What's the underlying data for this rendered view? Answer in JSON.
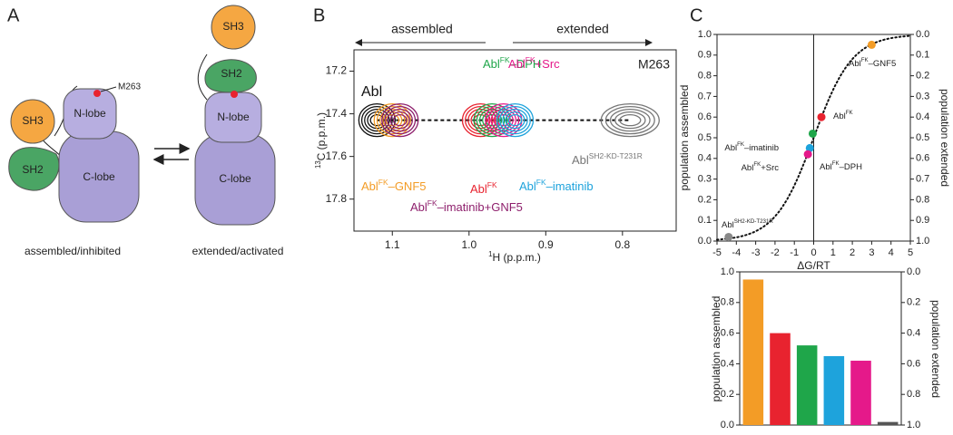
{
  "diagram": {
    "label": "A",
    "left": {
      "sh3": "SH3",
      "sh2": "SH2",
      "nlobe": "N-lobe",
      "clobe": "C-lobe",
      "site": "M263",
      "caption": "assembled/inhibited"
    },
    "right": {
      "sh3": "SH3",
      "sh2": "SH2",
      "nlobe": "N-lobe",
      "clobe": "C-lobe",
      "caption": "extended/activated"
    }
  },
  "chart_data": [
    {
      "type": "contour",
      "panel": "B",
      "annotations": {
        "left_arrow": "assembled",
        "right_arrow": "extended",
        "residue": "M263"
      },
      "xlabel": [
        "1",
        "H (p.p.m.)"
      ],
      "ylabel": [
        "13",
        "C (p.p.m.)"
      ],
      "xlim": [
        1.15,
        0.73
      ],
      "ylim": [
        17.95,
        17.1
      ],
      "xticks": [
        1.1,
        {
          "value": 1,
          "label": "1.0"
        },
        0.9,
        0.8
      ],
      "yticks": [
        17.2,
        17.4,
        17.6,
        17.8
      ],
      "series": [
        {
          "name": [
            "Abl"
          ],
          "color": "#111111",
          "x": [
            1.12
          ],
          "y": [
            17.43
          ]
        },
        {
          "name": [
            "Abl",
            "FK",
            "–GNF5"
          ],
          "color": "#f39c26",
          "x": [
            1.1
          ],
          "y": [
            17.43
          ]
        },
        {
          "name": [
            "Abl",
            "FK",
            "–imatinib+GNF5"
          ],
          "color": "#8e1f6c",
          "x": [
            1.09
          ],
          "y": [
            17.43
          ]
        },
        {
          "name": [
            "Abl",
            "FK"
          ],
          "color": "#e8232f",
          "x": [
            0.985
          ],
          "y": [
            17.43
          ]
        },
        {
          "name": [
            "Abl",
            "FK",
            "–DPH"
          ],
          "color": "#1fa64a",
          "x": [
            0.97
          ],
          "y": [
            17.43
          ]
        },
        {
          "name": [
            "Abl",
            "FK",
            "+Src"
          ],
          "color": "#e5198a",
          "x": [
            0.955
          ],
          "y": [
            17.43
          ]
        },
        {
          "name": [
            "Abl",
            "FK",
            "–imatinib"
          ],
          "color": "#1ea3dc",
          "x": [
            0.94
          ],
          "y": [
            17.43
          ]
        },
        {
          "name": [
            "Abl",
            "SH2-KD-T231R"
          ],
          "color": "#777777",
          "x": [
            0.79
          ],
          "y": [
            17.43
          ]
        }
      ]
    },
    {
      "type": "scatter",
      "panel": "C",
      "xlabel": "ΔG/RT",
      "ylabel": "population assembled",
      "y2label": "population extended",
      "xlim": [
        -5,
        5
      ],
      "ylim": [
        0,
        1
      ],
      "y2lim": [
        1,
        0
      ],
      "xticks": [
        -5,
        -4,
        -3,
        -2,
        -1,
        0,
        1,
        2,
        3,
        4,
        5
      ],
      "yticks": [
        {
          "value": 0,
          "label": "0.0"
        },
        0.1,
        0.2,
        0.3,
        0.4,
        0.5,
        0.6,
        0.7,
        0.8,
        0.9,
        {
          "value": 1,
          "label": "1.0"
        }
      ],
      "y2ticks": [
        {
          "value": 0,
          "label": "0.0"
        },
        0.1,
        0.2,
        0.3,
        0.4,
        0.5,
        0.6,
        0.7,
        0.8,
        0.9,
        {
          "value": 1,
          "label": "1.0"
        }
      ],
      "series": [
        {
          "name": [
            "Abl",
            "FK",
            "–GNF5"
          ],
          "color": "#f39c26",
          "x": [
            3.0
          ],
          "values": [
            0.95
          ]
        },
        {
          "name": [
            "Abl",
            "FK"
          ],
          "color": "#e8232f",
          "x": [
            0.4
          ],
          "values": [
            0.6
          ]
        },
        {
          "name": [
            "Abl",
            "FK",
            "–imatinib"
          ],
          "color": "#1ea3dc",
          "x": [
            -0.2
          ],
          "values": [
            0.45
          ]
        },
        {
          "name": [
            "Abl",
            "FK",
            "–DPH"
          ],
          "color": "#1fa64a",
          "x": [
            -0.05
          ],
          "values": [
            0.52
          ]
        },
        {
          "name": [
            "Abl",
            "FK",
            "+Src"
          ],
          "color": "#e5198a",
          "x": [
            -0.3
          ],
          "values": [
            0.42
          ]
        },
        {
          "name": [
            "Abl",
            "SH2-KD-T231R"
          ],
          "color": "#888888",
          "x": [
            -4.4
          ],
          "values": [
            0.02
          ]
        }
      ]
    },
    {
      "type": "bar",
      "panel": null,
      "ylabel": "population assembled",
      "y2label": "population extended",
      "categories": [
        null,
        null,
        null,
        null,
        null,
        null
      ],
      "values": [
        0.95,
        0.6,
        0.52,
        0.45,
        0.42,
        0.02
      ],
      "colors": [
        "#f39c26",
        "#e8232f",
        "#1fa64a",
        "#1ea3dc",
        "#e5198a",
        "#555555"
      ],
      "ylim": [
        0,
        1
      ],
      "y2lim": [
        1,
        0
      ],
      "yticks": [
        {
          "value": 0,
          "label": "0.0"
        },
        0.2,
        0.4,
        0.6,
        0.8,
        {
          "value": 1,
          "label": "1.0"
        }
      ],
      "y2ticks": [
        {
          "value": 0,
          "label": "0.0"
        },
        0.2,
        0.4,
        0.6,
        0.8,
        {
          "value": 1,
          "label": "1.0"
        }
      ]
    }
  ]
}
